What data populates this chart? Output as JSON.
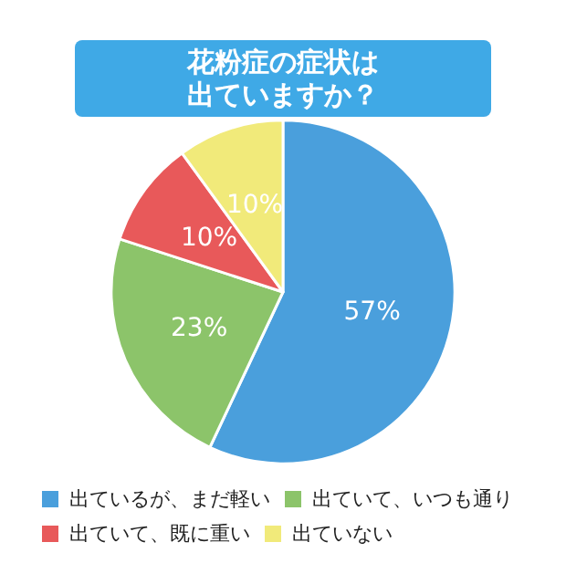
{
  "chart_data": {
    "type": "pie",
    "title": "花粉症の症状は出ていますか？",
    "categories": [
      "出ているが、まだ軽い",
      "出ていて、いつも通り",
      "出ていて、既に重い",
      "出ていない"
    ],
    "values": [
      57,
      23,
      10,
      10
    ],
    "colors": [
      "#4a9fdc",
      "#8cc46a",
      "#e8595a",
      "#f1ea7a"
    ],
    "value_labels": [
      "57%",
      "23%",
      "10%",
      "10%"
    ],
    "legend": "bottom"
  }
}
